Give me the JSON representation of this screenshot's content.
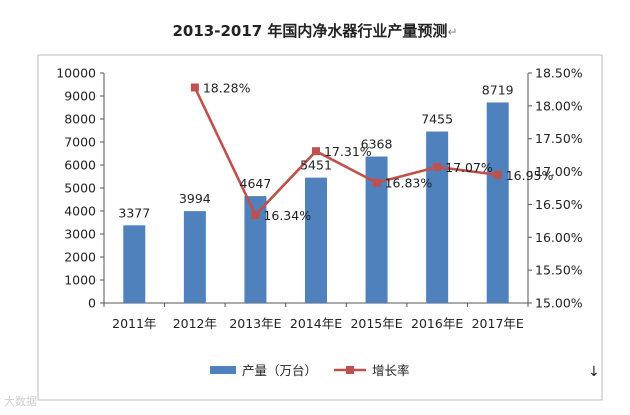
{
  "title": "2013-2017 年国内净水器行业产量预测",
  "title_mark": "↵",
  "chart_data": {
    "type": "bar",
    "categories": [
      "2011年",
      "2012年",
      "2013年E",
      "2014年E",
      "2015年E",
      "2016年E",
      "2017年E"
    ],
    "series": [
      {
        "name": "产量（万台）",
        "type": "bar",
        "axis": "left",
        "color": "#4f81bd",
        "values": [
          3377,
          3994,
          4647,
          5451,
          6368,
          7455,
          8719
        ],
        "labels": [
          "3377",
          "3994",
          "4647",
          "5451",
          "6368",
          "7455",
          "8719"
        ]
      },
      {
        "name": "增长率",
        "type": "line",
        "axis": "right",
        "color": "#c0504d",
        "values": [
          null,
          18.28,
          16.34,
          17.31,
          16.83,
          17.07,
          16.95
        ],
        "labels": [
          null,
          "18.28%",
          "16.34%",
          "17.31%",
          "16.83%",
          "17.07%",
          "16.95%"
        ]
      }
    ],
    "y_left": {
      "ylim": [
        0,
        10000
      ],
      "ticks": [
        "0",
        "1000",
        "2000",
        "3000",
        "4000",
        "5000",
        "6000",
        "7000",
        "8000",
        "9000",
        "10000"
      ]
    },
    "y_right": {
      "ylim": [
        15.0,
        18.5
      ],
      "ticks": [
        "15.00%",
        "15.50%",
        "16.00%",
        "16.50%",
        "17.00%",
        "17.50%",
        "18.00%",
        "18.50%"
      ]
    },
    "grid": false,
    "legend_position": "bottom"
  },
  "watermark": "大数据",
  "corner_mark": "↓"
}
